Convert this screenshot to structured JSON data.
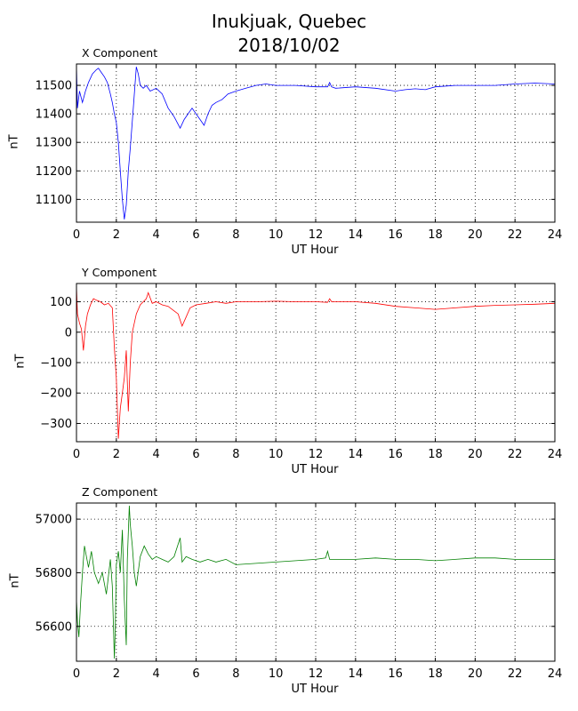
{
  "title_line1": "Inukjuak, Quebec",
  "title_line2": "2018/10/02",
  "chart_data": [
    {
      "type": "line",
      "title": "X Component",
      "xlabel": "UT Hour",
      "ylabel": "nT",
      "xlim": [
        0,
        24
      ],
      "ylim": [
        11020,
        11575
      ],
      "xticks": [
        0,
        2,
        4,
        6,
        8,
        10,
        12,
        14,
        16,
        18,
        20,
        22,
        24
      ],
      "yticks": [
        11100,
        11200,
        11300,
        11400,
        11500
      ],
      "grid": true,
      "color": "#0000ff",
      "series": [
        {
          "x": [
            0,
            0.05,
            0.15,
            0.3,
            0.45,
            0.6,
            0.8,
            1.0,
            1.1,
            1.25,
            1.4,
            1.55,
            1.7,
            1.8,
            1.9,
            2.0,
            2.1,
            2.2,
            2.3,
            2.4,
            2.5,
            2.6,
            2.7,
            2.85,
            3.0,
            3.1,
            3.2,
            3.35,
            3.5,
            3.7,
            4.0,
            4.3,
            4.6,
            4.9,
            5.2,
            5.4,
            5.6,
            5.8,
            6.0,
            6.2,
            6.4,
            6.6,
            6.8,
            7.0,
            7.3,
            7.6,
            8.0,
            8.5,
            9.0,
            9.5,
            10,
            11,
            12,
            12.6,
            12.7,
            12.8,
            13,
            14,
            15,
            16,
            16.5,
            17,
            17.5,
            18,
            19,
            20,
            21,
            22,
            23,
            24
          ],
          "y": [
            11570,
            11420,
            11480,
            11440,
            11480,
            11510,
            11540,
            11555,
            11560,
            11545,
            11530,
            11510,
            11470,
            11440,
            11400,
            11370,
            11300,
            11200,
            11100,
            11030,
            11080,
            11200,
            11280,
            11420,
            11565,
            11540,
            11500,
            11490,
            11500,
            11480,
            11490,
            11470,
            11420,
            11390,
            11350,
            11380,
            11400,
            11420,
            11400,
            11380,
            11360,
            11400,
            11430,
            11440,
            11450,
            11470,
            11480,
            11490,
            11500,
            11505,
            11500,
            11500,
            11495,
            11495,
            11510,
            11495,
            11490,
            11495,
            11490,
            11480,
            11485,
            11488,
            11485,
            11495,
            11500,
            11500,
            11500,
            11505,
            11508,
            11505
          ]
        }
      ]
    },
    {
      "type": "line",
      "title": "Y Component",
      "xlabel": "UT Hour",
      "ylabel": "nT",
      "xlim": [
        0,
        24
      ],
      "ylim": [
        -360,
        160
      ],
      "xticks": [
        0,
        2,
        4,
        6,
        8,
        10,
        12,
        14,
        16,
        18,
        20,
        22,
        24
      ],
      "yticks": [
        -300,
        -200,
        -100,
        0,
        100
      ],
      "grid": true,
      "color": "#ff0000",
      "series": [
        {
          "x": [
            0,
            0.05,
            0.15,
            0.25,
            0.35,
            0.45,
            0.55,
            0.7,
            0.85,
            1.0,
            1.2,
            1.4,
            1.6,
            1.8,
            1.9,
            2.0,
            2.1,
            2.2,
            2.3,
            2.4,
            2.5,
            2.6,
            2.7,
            2.8,
            3.0,
            3.2,
            3.5,
            3.6,
            3.8,
            4.0,
            4.3,
            4.6,
            4.9,
            5.1,
            5.3,
            5.5,
            5.7,
            6.0,
            6.5,
            7.0,
            7.5,
            8.0,
            9.0,
            10,
            11,
            12,
            12.6,
            12.7,
            12.8,
            13,
            14,
            15,
            16,
            17,
            18,
            19,
            20,
            21,
            22,
            23,
            24
          ],
          "y": [
            150,
            60,
            30,
            10,
            -60,
            20,
            60,
            90,
            110,
            105,
            100,
            90,
            95,
            80,
            -50,
            -150,
            -350,
            -250,
            -200,
            -150,
            -60,
            -260,
            -100,
            0,
            60,
            90,
            110,
            130,
            95,
            100,
            90,
            85,
            70,
            60,
            20,
            50,
            80,
            90,
            95,
            100,
            95,
            100,
            100,
            102,
            100,
            100,
            98,
            110,
            100,
            100,
            100,
            95,
            85,
            80,
            75,
            80,
            85,
            88,
            90,
            92,
            95
          ]
        }
      ]
    },
    {
      "type": "line",
      "title": "Z Component",
      "xlabel": "UT Hour",
      "ylabel": "nT",
      "xlim": [
        0,
        24
      ],
      "ylim": [
        56470,
        57060
      ],
      "xticks": [
        0,
        2,
        4,
        6,
        8,
        10,
        12,
        14,
        16,
        18,
        20,
        22,
        24
      ],
      "yticks": [
        56600,
        56800,
        57000
      ],
      "grid": true,
      "color": "#008000",
      "series": [
        {
          "x": [
            0,
            0.05,
            0.12,
            0.2,
            0.3,
            0.4,
            0.5,
            0.6,
            0.75,
            0.9,
            1.1,
            1.3,
            1.5,
            1.7,
            1.8,
            1.9,
            1.95,
            2.0,
            2.1,
            2.2,
            2.3,
            2.4,
            2.5,
            2.55,
            2.65,
            2.7,
            2.8,
            2.9,
            3.0,
            3.2,
            3.4,
            3.6,
            3.8,
            4.0,
            4.3,
            4.6,
            4.9,
            5.2,
            5.3,
            5.5,
            5.8,
            6.2,
            6.6,
            7.0,
            7.5,
            8.0,
            9.0,
            10,
            11,
            12,
            12.5,
            12.6,
            12.7,
            13,
            14,
            15,
            16,
            17,
            18,
            19,
            20,
            21,
            22,
            23,
            24
          ],
          "y": [
            56700,
            56620,
            56560,
            56680,
            56800,
            56900,
            56860,
            56820,
            56880,
            56800,
            56760,
            56800,
            56720,
            56850,
            56750,
            56480,
            56600,
            56830,
            56880,
            56800,
            56960,
            56700,
            56530,
            56850,
            57050,
            56980,
            56900,
            56800,
            56750,
            56860,
            56900,
            56870,
            56850,
            56860,
            56850,
            56840,
            56860,
            56930,
            56840,
            56860,
            56850,
            56840,
            56850,
            56840,
            56850,
            56830,
            56835,
            56840,
            56845,
            56850,
            56855,
            56880,
            56850,
            56850,
            56850,
            56855,
            56850,
            56850,
            56845,
            56850,
            56855,
            56855,
            56850,
            56850,
            56850
          ]
        }
      ]
    }
  ]
}
